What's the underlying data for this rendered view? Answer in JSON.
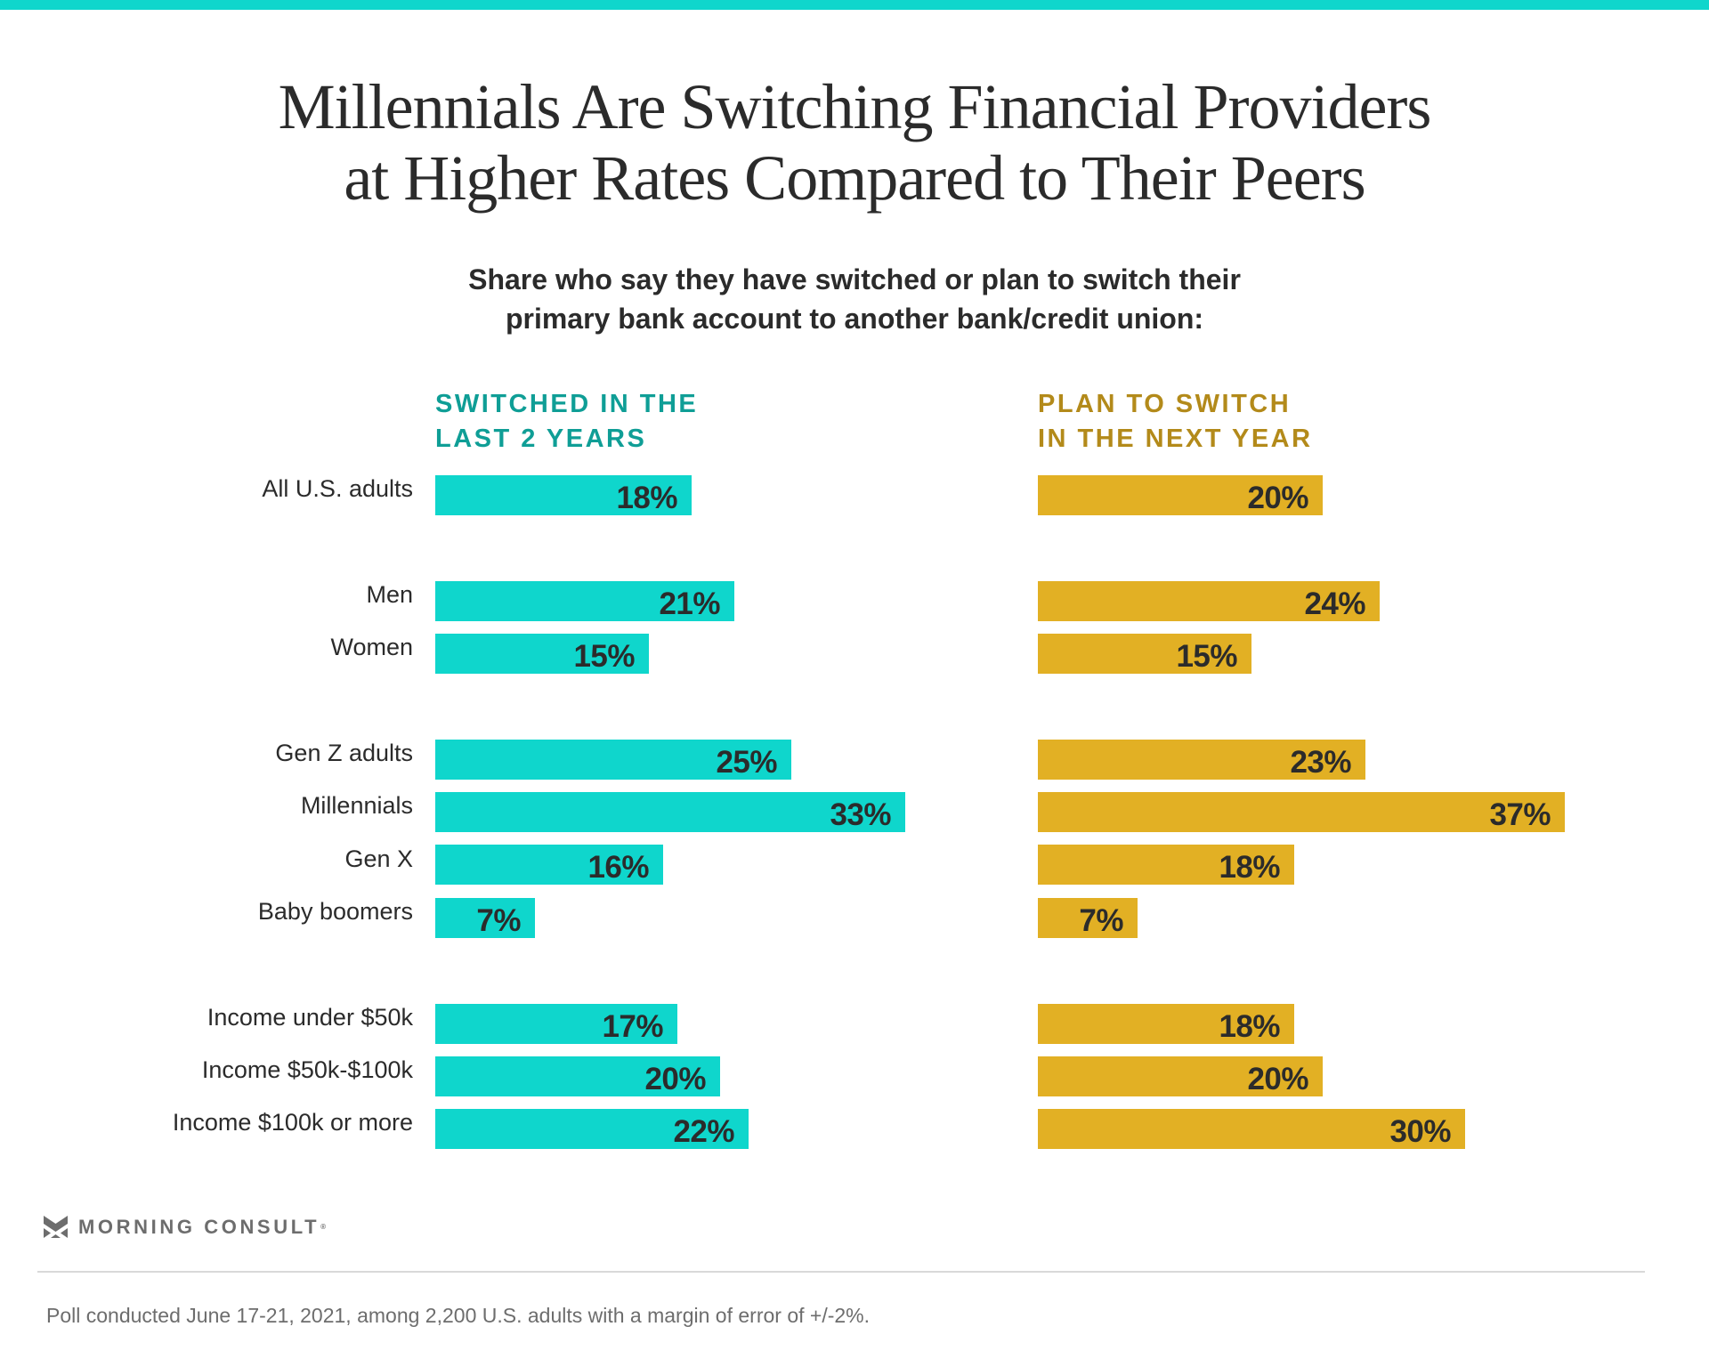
{
  "header": {
    "title_lines": [
      "Millennials Are Switching Financial Providers",
      "at Higher Rates Compared to Their Peers"
    ],
    "subtitle_lines": [
      "Share who say they have switched or plan to switch their",
      "primary bank account to another bank/credit union:"
    ]
  },
  "colors": {
    "accent_top_bar": "#0fd6cc",
    "switched_bar": "#0fd6cc",
    "switched_heading": "#0f9e96",
    "plan_bar": "#e2b024",
    "plan_heading": "#b38a1a",
    "text": "#2b2b2b",
    "muted": "#6d6d6d"
  },
  "chart_data": {
    "type": "bar",
    "orientation": "horizontal",
    "title": "Millennials Are Switching Financial Providers at Higher Rates Compared to Their Peers",
    "subtitle": "Share who say they have switched or plan to switch their primary bank account to another bank/credit union:",
    "xlabel": "",
    "ylabel": "",
    "unit": "%",
    "grid": false,
    "categories": [
      "All U.S. adults",
      "Men",
      "Women",
      "Gen Z adults",
      "Millennials",
      "Gen X",
      "Baby boomers",
      "Income under $50k",
      "Income $50k-$100k",
      "Income $100k or more"
    ],
    "groups": [
      [
        "All U.S. adults"
      ],
      [
        "Men",
        "Women"
      ],
      [
        "Gen Z adults",
        "Millennials",
        "Gen X",
        "Baby boomers"
      ],
      [
        "Income under $50k",
        "Income $50k-$100k",
        "Income $100k or more"
      ]
    ],
    "series": [
      {
        "name": "Switched in the last 2 years",
        "heading_lines": [
          "SWITCHED IN THE",
          "LAST 2 YEARS"
        ],
        "values": [
          18,
          21,
          15,
          25,
          33,
          16,
          7,
          17,
          20,
          22
        ],
        "labels": [
          "18%",
          "21%",
          "15%",
          "25%",
          "33%",
          "16%",
          "7%",
          "17%",
          "20%",
          "22%"
        ]
      },
      {
        "name": "Plan to switch in the next year",
        "heading_lines": [
          "PLAN TO SWITCH",
          "IN THE NEXT YEAR"
        ],
        "values": [
          20,
          24,
          15,
          23,
          37,
          18,
          7,
          18,
          20,
          30
        ],
        "labels": [
          "20%",
          "24%",
          "15%",
          "23%",
          "37%",
          "18%",
          "7%",
          "18%",
          "20%",
          "30%"
        ]
      }
    ]
  },
  "footer": {
    "brand": "MORNING CONSULT",
    "brand_mark": "®",
    "logo_icon": "morning-consult-m-chevron-icon",
    "note": "Poll conducted June 17-21, 2021, among 2,200 U.S. adults with a margin of error of +/-2%."
  }
}
